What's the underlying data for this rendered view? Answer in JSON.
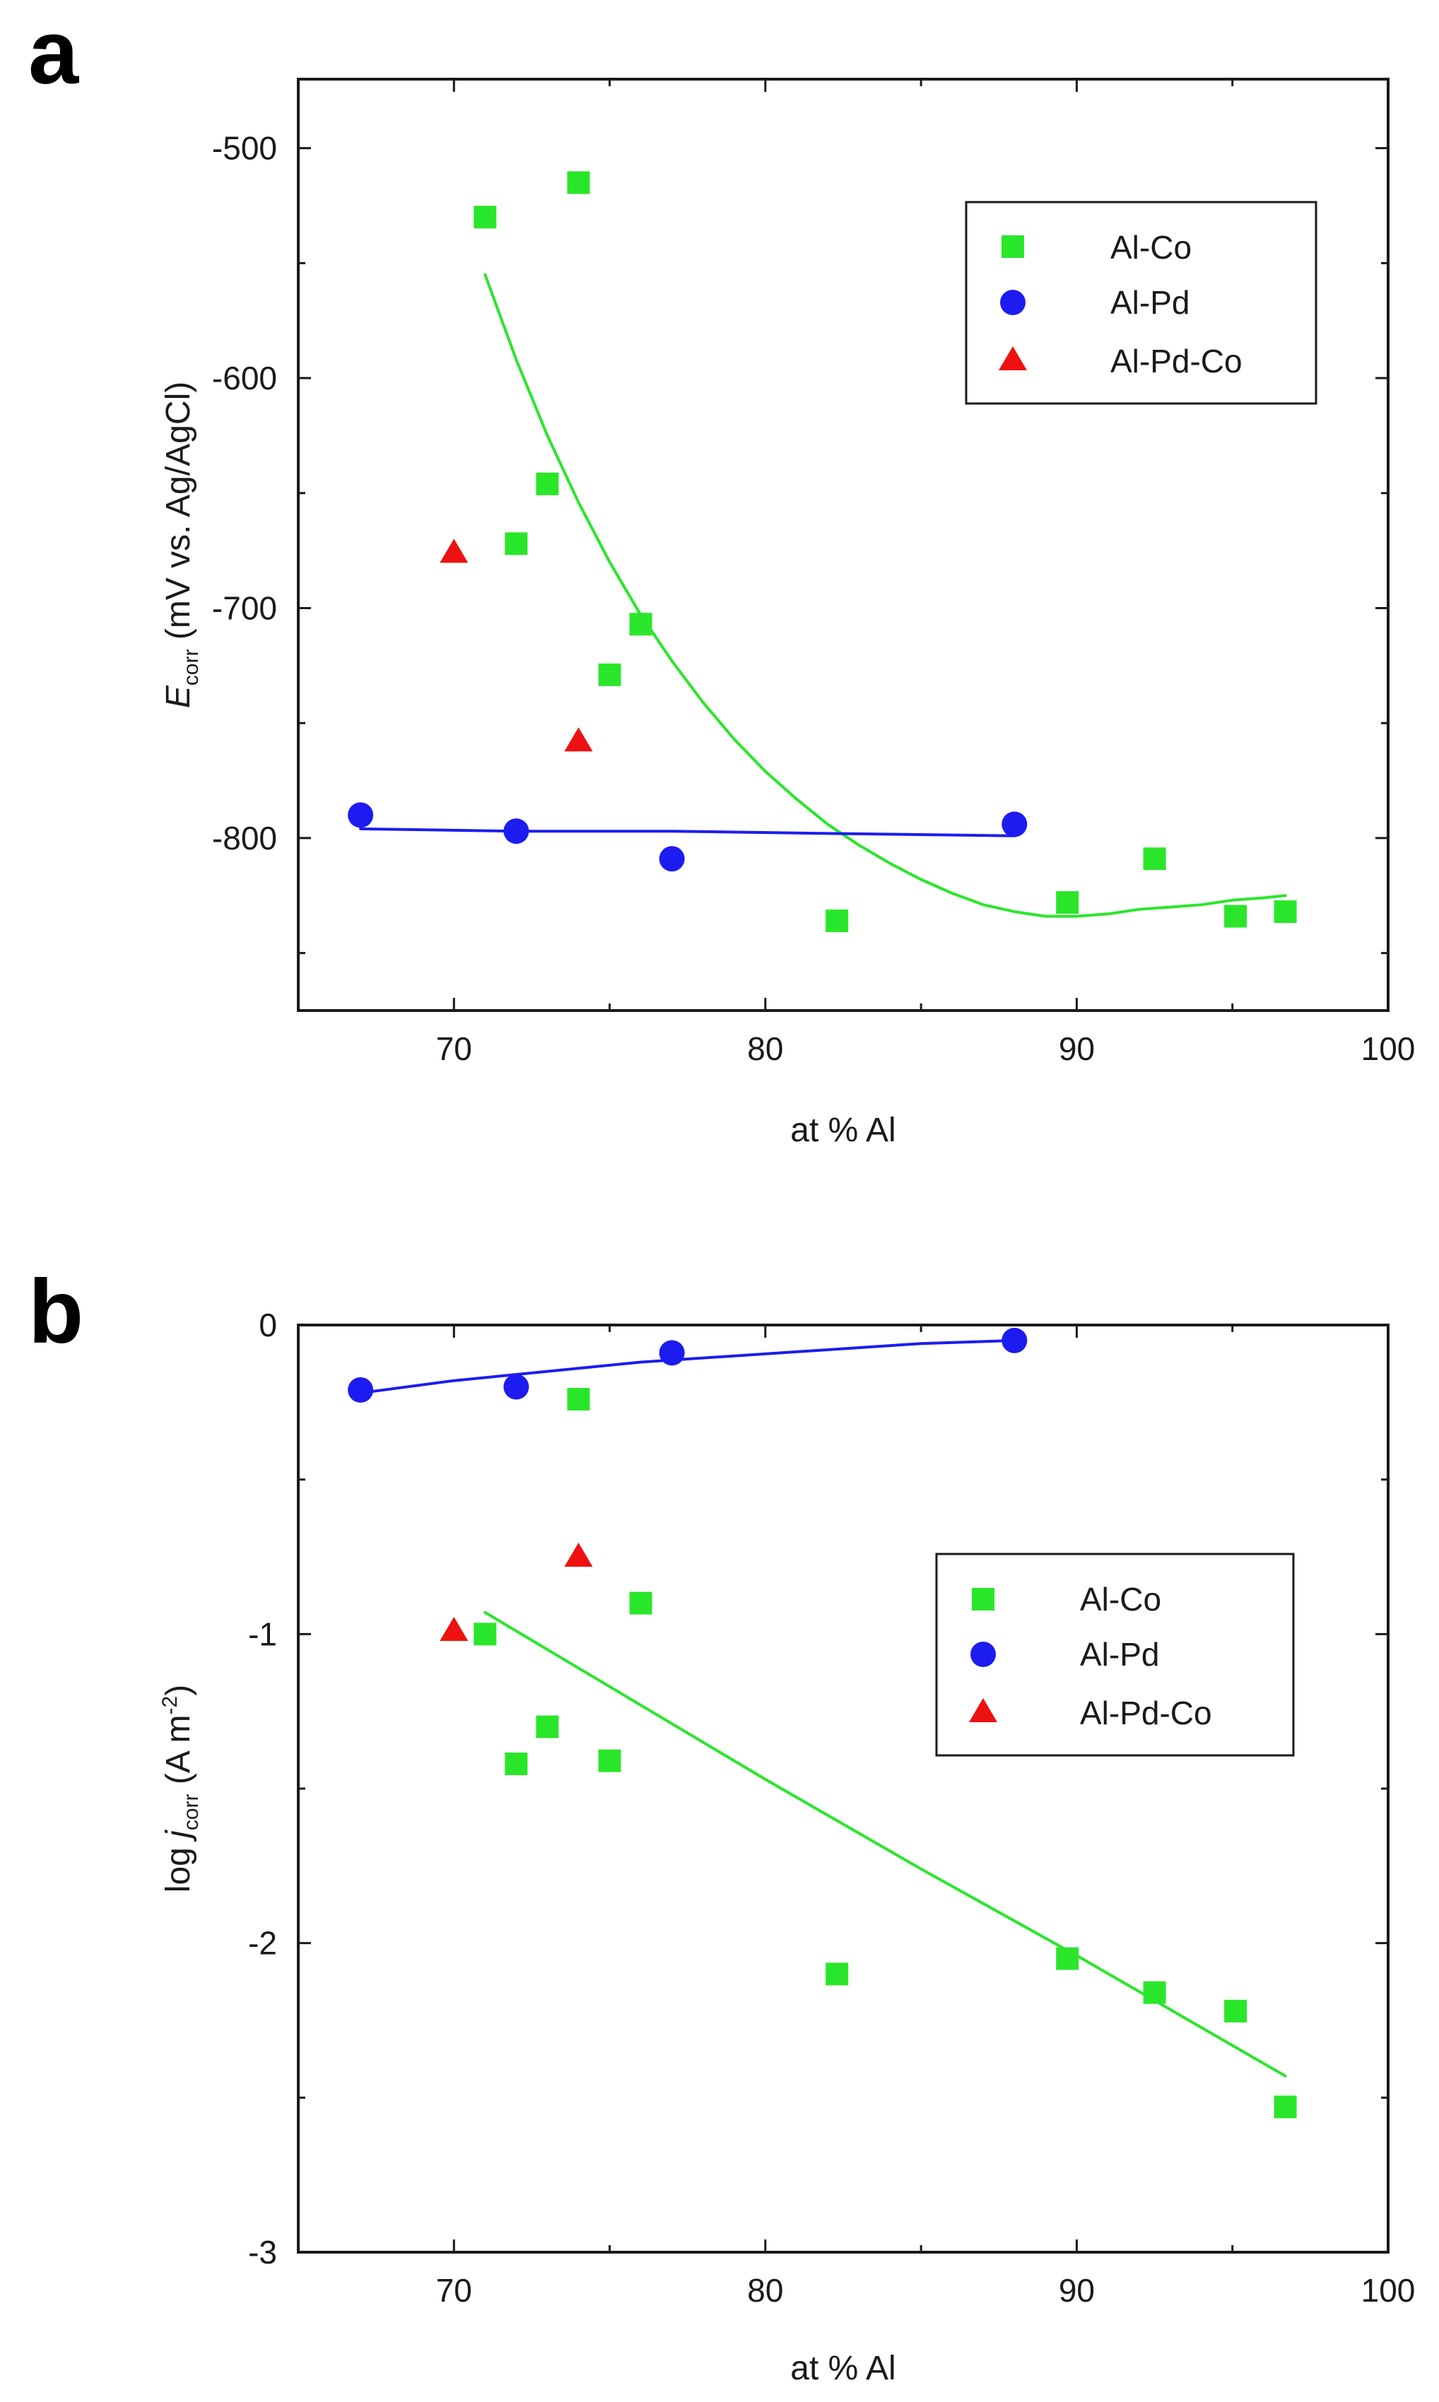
{
  "figure": {
    "colors": {
      "al_co": "#2ae62a",
      "al_pd": "#1c1cf0",
      "al_pd_co": "#ee1111",
      "axis": "#1a1a1a"
    }
  },
  "chart_data": [
    {
      "panel_label": "a",
      "type": "scatter",
      "title": "",
      "xlabel": "at % Al",
      "ylabel_main": "E",
      "ylabel_sub": "corr",
      "ylabel_rest": " (mV vs. Ag/AgCl)",
      "xlim": [
        65,
        100
      ],
      "ylim": [
        -875,
        -470
      ],
      "xticks": [
        70,
        80,
        90,
        100
      ],
      "xtick_labels": [
        "70",
        "80",
        "90",
        "100"
      ],
      "yticks": [
        -500,
        -600,
        -700,
        -800
      ],
      "ytick_labels": [
        "-500",
        "-600",
        "-700",
        "-800"
      ],
      "legend_position": "top-right",
      "series": [
        {
          "name": "Al-Co",
          "marker": "square",
          "color": "#2ae62a",
          "x": [
            71,
            72,
            73,
            74,
            75,
            76,
            82.3,
            89.7,
            92.5,
            95.1,
            96.7
          ],
          "y": [
            -530,
            -672,
            -646,
            -515,
            -729,
            -707,
            -836,
            -828,
            -809,
            -834,
            -832
          ],
          "fit": {
            "x": [
              71,
              72,
              73,
              74,
              75,
              76,
              77,
              78,
              79,
              80,
              81,
              82,
              83,
              84,
              85,
              86,
              87,
              88,
              89,
              90,
              91,
              92,
              93,
              94,
              95,
              96,
              96.7
            ],
            "y": [
              -555,
              -592,
              -625,
              -654,
              -680,
              -703,
              -723,
              -741,
              -757,
              -771,
              -783,
              -794,
              -803,
              -811,
              -818,
              -824,
              -829,
              -832,
              -834,
              -834,
              -833,
              -831,
              -830,
              -829,
              -827,
              -826,
              -825
            ]
          }
        },
        {
          "name": "Al-Pd",
          "marker": "circle",
          "color": "#1c1cf0",
          "x": [
            67,
            72,
            77,
            88
          ],
          "y": [
            -790,
            -797,
            -809,
            -794
          ],
          "fit": {
            "x": [
              67,
              72,
              77,
              82,
              88
            ],
            "y": [
              -796,
              -797,
              -797,
              -798,
              -799
            ]
          }
        },
        {
          "name": "Al-Pd-Co",
          "marker": "triangle",
          "color": "#ee1111",
          "x": [
            70,
            74
          ],
          "y": [
            -676,
            -758
          ]
        }
      ]
    },
    {
      "panel_label": "b",
      "type": "scatter",
      "title": "",
      "xlabel": "at % Al",
      "ylabel_main": "log ",
      "ylabel_italic": "j",
      "ylabel_sub": "corr",
      "ylabel_rest": " (A m",
      "ylabel_sup": "-2",
      "ylabel_end": ")",
      "xlim": [
        65,
        100
      ],
      "ylim": [
        -3,
        0
      ],
      "xticks": [
        70,
        80,
        90,
        100
      ],
      "xtick_labels": [
        "70",
        "80",
        "90",
        "100"
      ],
      "yticks": [
        0,
        -1,
        -2,
        -3
      ],
      "ytick_labels": [
        "0",
        "-1",
        "-2",
        "-3"
      ],
      "legend_position": "center-right",
      "series": [
        {
          "name": "Al-Co",
          "marker": "square",
          "color": "#2ae62a",
          "x": [
            71,
            72,
            73,
            74,
            75,
            76,
            82.3,
            89.7,
            92.5,
            95.1,
            96.7
          ],
          "y": [
            -1.0,
            -1.42,
            -1.3,
            -0.24,
            -1.41,
            -0.9,
            -2.1,
            -2.05,
            -2.16,
            -2.22,
            -2.53
          ],
          "fit": {
            "x": [
              71,
              75,
              80,
              85,
              90,
              96.7
            ],
            "y": [
              -0.93,
              -1.17,
              -1.47,
              -1.76,
              -2.04,
              -2.43
            ]
          }
        },
        {
          "name": "Al-Pd",
          "marker": "circle",
          "color": "#1c1cf0",
          "x": [
            67,
            72,
            77,
            88
          ],
          "y": [
            -0.21,
            -0.2,
            -0.09,
            -0.05
          ],
          "fit": {
            "x": [
              67,
              70,
              73,
              76,
              79,
              82,
              85,
              88
            ],
            "y": [
              -0.22,
              -0.18,
              -0.15,
              -0.12,
              -0.1,
              -0.08,
              -0.06,
              -0.05
            ]
          }
        },
        {
          "name": "Al-Pd-Co",
          "marker": "triangle",
          "color": "#ee1111",
          "x": [
            70,
            74
          ],
          "y": [
            -0.99,
            -0.75
          ]
        }
      ]
    }
  ]
}
